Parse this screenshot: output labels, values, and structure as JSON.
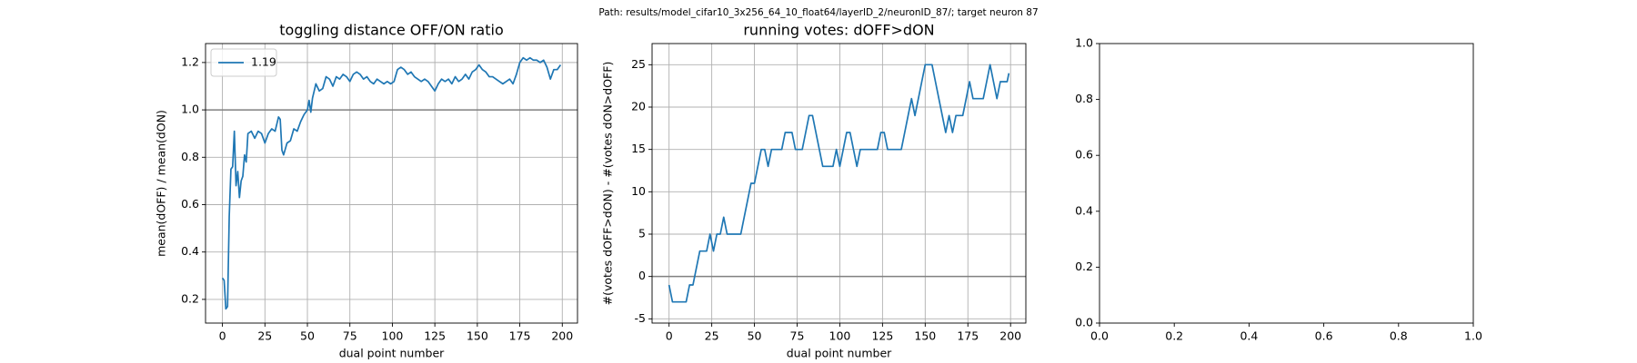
{
  "suptitle": "Path: results/model_cifar10_3x256_64_10_float64/layerID_2/neuronID_87/; target neuron 87",
  "chart_data": [
    {
      "type": "line",
      "title": "toggling distance OFF/ON ratio",
      "xlabel": "dual point number",
      "ylabel": "mean(dOFF) / mean(dON)",
      "x": [
        0,
        1,
        2,
        3,
        4,
        5,
        6,
        7,
        8,
        9,
        10,
        11,
        12,
        13,
        14,
        15,
        17,
        19,
        21,
        23,
        25,
        27,
        29,
        31,
        33,
        34,
        35,
        36,
        38,
        40,
        42,
        44,
        46,
        48,
        50,
        51,
        52,
        53,
        55,
        57,
        59,
        61,
        63,
        65,
        67,
        69,
        71,
        73,
        75,
        77,
        79,
        81,
        83,
        85,
        87,
        89,
        91,
        93,
        95,
        97,
        99,
        101,
        103,
        105,
        107,
        109,
        111,
        113,
        115,
        117,
        119,
        121,
        123,
        125,
        127,
        129,
        131,
        133,
        135,
        137,
        139,
        141,
        143,
        145,
        147,
        149,
        151,
        153,
        155,
        157,
        159,
        161,
        163,
        165,
        167,
        169,
        171,
        173,
        175,
        177,
        179,
        181,
        183,
        185,
        187,
        189,
        191,
        193,
        195,
        197,
        199
      ],
      "series": [
        {
          "name": "1.19",
          "color": "#1f77b4",
          "values": [
            0.29,
            0.28,
            0.16,
            0.17,
            0.55,
            0.75,
            0.76,
            0.91,
            0.68,
            0.74,
            0.63,
            0.7,
            0.72,
            0.81,
            0.78,
            0.9,
            0.91,
            0.88,
            0.91,
            0.9,
            0.86,
            0.9,
            0.92,
            0.91,
            0.97,
            0.96,
            0.83,
            0.81,
            0.86,
            0.87,
            0.92,
            0.91,
            0.95,
            0.98,
            1.0,
            1.04,
            0.99,
            1.05,
            1.11,
            1.08,
            1.09,
            1.14,
            1.13,
            1.1,
            1.14,
            1.13,
            1.15,
            1.14,
            1.12,
            1.15,
            1.16,
            1.15,
            1.13,
            1.14,
            1.12,
            1.11,
            1.13,
            1.12,
            1.11,
            1.12,
            1.11,
            1.12,
            1.17,
            1.18,
            1.17,
            1.15,
            1.16,
            1.14,
            1.13,
            1.12,
            1.13,
            1.12,
            1.1,
            1.08,
            1.11,
            1.13,
            1.12,
            1.13,
            1.11,
            1.14,
            1.12,
            1.13,
            1.15,
            1.13,
            1.16,
            1.17,
            1.19,
            1.17,
            1.16,
            1.14,
            1.14,
            1.13,
            1.12,
            1.11,
            1.12,
            1.13,
            1.11,
            1.15,
            1.2,
            1.22,
            1.21,
            1.22,
            1.21,
            1.21,
            1.2,
            1.21,
            1.18,
            1.13,
            1.17,
            1.17,
            1.19
          ]
        }
      ],
      "hline": 1,
      "hline_color": "#808080",
      "xlim": [
        -9.95,
        208.95
      ],
      "xticks": [
        0,
        25,
        50,
        75,
        100,
        125,
        150,
        175,
        200
      ],
      "ylim": [
        0.1,
        1.28
      ],
      "yticks": [
        0.2,
        0.4,
        0.6,
        0.8,
        {
          "value": 1,
          "label": "1.0"
        },
        1.2
      ],
      "grid": true,
      "legend": "upper left"
    },
    {
      "type": "line",
      "title": "running votes: dOFF>dON",
      "xlabel": "dual point number",
      "ylabel": "#(votes dOFF>dON) - #(votes dON>dOFF)",
      "x": [
        0,
        2,
        4,
        6,
        8,
        10,
        12,
        14,
        16,
        18,
        20,
        22,
        24,
        26,
        28,
        30,
        32,
        34,
        36,
        38,
        40,
        42,
        44,
        46,
        48,
        50,
        52,
        54,
        56,
        58,
        60,
        62,
        64,
        66,
        68,
        70,
        72,
        74,
        76,
        78,
        80,
        82,
        84,
        86,
        88,
        90,
        92,
        94,
        96,
        98,
        100,
        102,
        104,
        106,
        108,
        110,
        112,
        114,
        116,
        118,
        120,
        122,
        124,
        126,
        128,
        130,
        132,
        134,
        136,
        138,
        140,
        142,
        144,
        146,
        148,
        150,
        152,
        154,
        156,
        158,
        160,
        162,
        164,
        166,
        168,
        170,
        172,
        174,
        176,
        178,
        180,
        182,
        184,
        186,
        188,
        190,
        192,
        194,
        196,
        198,
        199
      ],
      "series": [
        {
          "color": "#1f77b4",
          "values": [
            -1,
            -3,
            -3,
            -3,
            -3,
            -3,
            -1,
            -1,
            1,
            3,
            3,
            3,
            5,
            3,
            5,
            5,
            7,
            5,
            5,
            5,
            5,
            5,
            7,
            9,
            11,
            11,
            13,
            15,
            15,
            13,
            15,
            15,
            15,
            15,
            17,
            17,
            17,
            15,
            15,
            15,
            17,
            19,
            19,
            17,
            15,
            13,
            13,
            13,
            13,
            15,
            13,
            15,
            17,
            17,
            15,
            13,
            15,
            15,
            15,
            15,
            15,
            15,
            17,
            17,
            15,
            15,
            15,
            15,
            15,
            17,
            19,
            21,
            19,
            21,
            23,
            25,
            25,
            25,
            23,
            21,
            19,
            17,
            19,
            17,
            19,
            19,
            19,
            21,
            23,
            21,
            21,
            21,
            21,
            23,
            25,
            23,
            21,
            23,
            23,
            23,
            24
          ]
        }
      ],
      "hline": 0,
      "hline_color": "#808080",
      "xlim": [
        -9.95,
        208.95
      ],
      "xticks": [
        0,
        25,
        50,
        75,
        100,
        125,
        150,
        175,
        200
      ],
      "ylim": [
        -5.5,
        27.5
      ],
      "yticks": [
        -5,
        0,
        5,
        10,
        15,
        20,
        25
      ],
      "grid": true
    },
    {
      "type": "empty",
      "xlim": [
        0,
        1
      ],
      "xticks": [
        {
          "value": 0,
          "label": "0.0"
        },
        0.2,
        0.4,
        0.6,
        0.8,
        {
          "value": 1,
          "label": "1.0"
        }
      ],
      "ylim": [
        0,
        1
      ],
      "yticks": [
        {
          "value": 0,
          "label": "0.0"
        },
        0.2,
        0.4,
        0.6,
        0.8,
        {
          "value": 1,
          "label": "1.0"
        }
      ],
      "grid": false
    }
  ]
}
